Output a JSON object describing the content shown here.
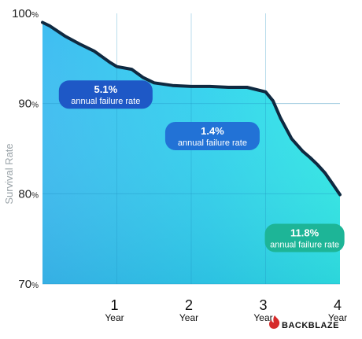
{
  "chart_data": {
    "type": "area",
    "title": "",
    "xlabel": "",
    "ylabel": "Survival Rate",
    "xlim": [
      0,
      4
    ],
    "ylim": [
      70,
      100
    ],
    "y_ticks": [
      {
        "value": 100,
        "label": "100",
        "unit": "%"
      },
      {
        "value": 90,
        "label": "90",
        "unit": "%"
      },
      {
        "value": 80,
        "label": "80",
        "unit": "%"
      },
      {
        "value": 70,
        "label": "70",
        "unit": "%"
      }
    ],
    "x_ticks": [
      {
        "value": 1,
        "label": "1",
        "unit": "Year"
      },
      {
        "value": 2,
        "label": "2",
        "unit": "Year"
      },
      {
        "value": 3,
        "label": "3",
        "unit": "Year"
      },
      {
        "value": 4,
        "label": "4",
        "unit": "Year"
      }
    ],
    "grid": true,
    "series": [
      {
        "x": [
          0,
          0.1,
          0.3,
          0.5,
          0.7,
          0.9,
          1.0,
          1.2,
          1.35,
          1.5,
          1.75,
          2.0,
          2.25,
          2.5,
          2.75,
          2.9,
          3.0,
          3.1,
          3.2,
          3.35,
          3.5,
          3.6,
          3.7,
          3.8,
          3.9,
          4.0
        ],
        "y": [
          99.0,
          98.6,
          97.5,
          96.6,
          95.8,
          94.6,
          94.1,
          93.8,
          92.9,
          92.3,
          92.0,
          91.9,
          91.9,
          91.8,
          91.8,
          91.5,
          91.3,
          90.3,
          88.4,
          86.1,
          84.7,
          84.0,
          83.2,
          82.3,
          81.1,
          79.9
        ]
      }
    ],
    "annotations": [
      {
        "value": "5.1%",
        "text": "annual failure rate",
        "period": "year 1 to 1.5"
      },
      {
        "value": "1.4%",
        "text": "annual failure rate",
        "period": "year 1.5 to 3"
      },
      {
        "value": "11.8%",
        "text": "annual failure rate",
        "period": "year 3 to 4"
      }
    ],
    "colors": {
      "area_top_left": "#3fc3f2",
      "area_top_right": "#33eae6",
      "line": "#0f2940",
      "grid": "#1f8fc0",
      "badge_1": "#1e58c6",
      "badge_2": "#2272d6",
      "badge_3": "#1db597"
    }
  },
  "brand": {
    "name": "BACKBLAZE",
    "logo_icon": "flame-icon",
    "color": "#d62b2b"
  }
}
